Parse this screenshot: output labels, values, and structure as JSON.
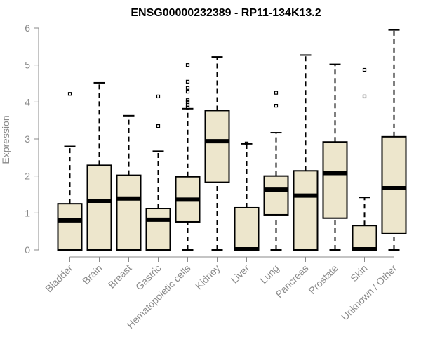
{
  "chart_data": {
    "type": "box",
    "title": "ENSG00000232389 - RP11-134K13.2",
    "xlabel": "",
    "ylabel": "Expression",
    "ylim": [
      0,
      6
    ],
    "yticks": [
      0,
      1,
      2,
      3,
      4,
      5,
      6
    ],
    "grid": false,
    "legend": "none",
    "colors": {
      "box_fill": "#ede6cc",
      "stroke": "#000000",
      "axis_text": "#8a8a8a"
    },
    "categories": [
      "Bladder",
      "Brain",
      "Breast",
      "Gastric",
      "Hematopoietic cells",
      "Kidney",
      "Liver",
      "Lung",
      "Pancreas",
      "Prostate",
      "Skin",
      "Unknown / Other"
    ],
    "boxes": [
      {
        "min": 0,
        "q1": 0,
        "median": 0.8,
        "q3": 1.25,
        "max": 2.8,
        "outliers": [
          4.22
        ]
      },
      {
        "min": 0,
        "q1": 0,
        "median": 1.33,
        "q3": 2.29,
        "max": 4.52,
        "outliers": []
      },
      {
        "min": 0,
        "q1": 0,
        "median": 1.39,
        "q3": 2.02,
        "max": 3.63,
        "outliers": []
      },
      {
        "min": 0,
        "q1": 0,
        "median": 0.82,
        "q3": 1.12,
        "max": 2.67,
        "outliers": [
          3.35,
          4.15
        ]
      },
      {
        "min": 0,
        "q1": 0.76,
        "median": 1.36,
        "q3": 1.98,
        "max": 3.82,
        "outliers": [
          3.85,
          3.92,
          4.0,
          4.05,
          4.28,
          4.38,
          4.55,
          5.0
        ]
      },
      {
        "min": 0,
        "q1": 1.83,
        "median": 2.94,
        "q3": 3.77,
        "max": 5.22,
        "outliers": []
      },
      {
        "min": 0,
        "q1": 0,
        "median": 0.02,
        "q3": 1.14,
        "max": 2.87,
        "outliers": [
          2.88
        ]
      },
      {
        "min": 0,
        "q1": 0.95,
        "median": 1.63,
        "q3": 2.0,
        "max": 3.17,
        "outliers": [
          3.9,
          4.25
        ]
      },
      {
        "min": 0,
        "q1": 0,
        "median": 1.47,
        "q3": 2.14,
        "max": 5.27,
        "outliers": []
      },
      {
        "min": 0,
        "q1": 0.86,
        "median": 2.08,
        "q3": 2.92,
        "max": 5.02,
        "outliers": []
      },
      {
        "min": 0,
        "q1": 0,
        "median": 0.02,
        "q3": 0.66,
        "max": 1.42,
        "outliers": [
          4.15,
          4.87
        ]
      },
      {
        "min": 0,
        "q1": 0.44,
        "median": 1.67,
        "q3": 3.06,
        "max": 5.95,
        "outliers": []
      }
    ]
  }
}
